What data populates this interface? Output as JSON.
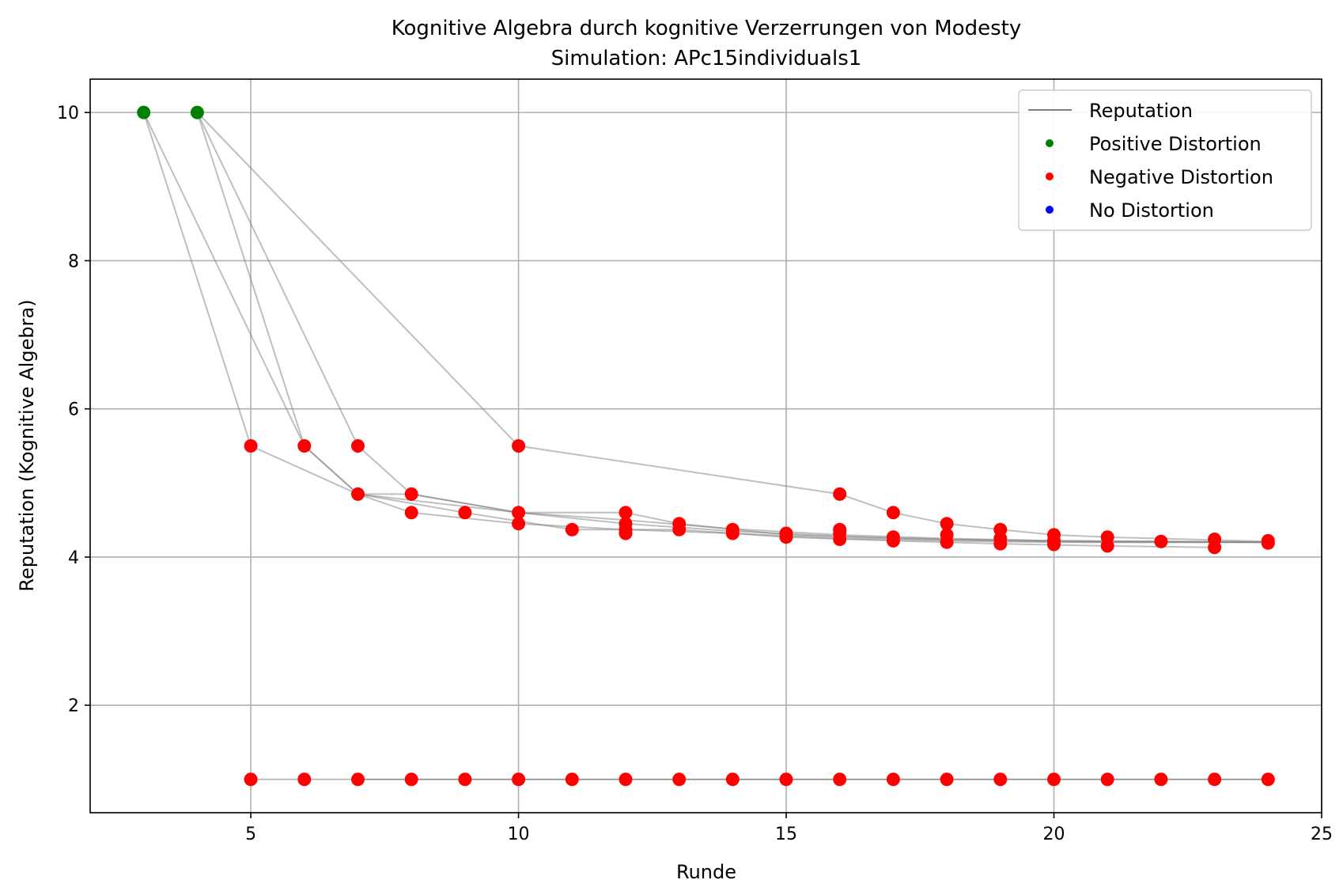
{
  "chart_data": {
    "type": "scatter",
    "title": "Kognitive Algebra durch kognitive Verzerrungen von Modesty",
    "subtitle": "Simulation: APc15individuals1",
    "xlabel": "Runde",
    "ylabel": "Reputation (Kognitive Algebra)",
    "xlim": [
      2,
      25
    ],
    "ylim": [
      0.55,
      10.45
    ],
    "xticks": [
      5,
      10,
      15,
      20,
      25
    ],
    "yticks": [
      2,
      4,
      6,
      8,
      10
    ],
    "grid": true,
    "legend": {
      "placement": "top-right",
      "entries": [
        {
          "label": "Reputation",
          "kind": "line",
          "color": "#808080"
        },
        {
          "label": "Positive Distortion",
          "kind": "dot",
          "color": "#008000"
        },
        {
          "label": "Negative Distortion",
          "kind": "dot",
          "color": "#ff0000"
        },
        {
          "label": "No Distortion",
          "kind": "dot",
          "color": "#0000ff"
        }
      ]
    },
    "line_color": "#808080",
    "trajectories": [
      [
        [
          3,
          10
        ],
        [
          5,
          5.5
        ],
        [
          7,
          4.85
        ],
        [
          10,
          4.6
        ],
        [
          12,
          4.5
        ],
        [
          14,
          4.38
        ],
        [
          16,
          4.3
        ],
        [
          18,
          4.25
        ],
        [
          20,
          4.22
        ],
        [
          22,
          4.21
        ],
        [
          24,
          4.2
        ]
      ],
      [
        [
          3,
          10
        ],
        [
          6,
          5.5
        ],
        [
          7,
          4.85
        ],
        [
          8,
          4.85
        ],
        [
          10,
          4.6
        ],
        [
          12,
          4.45
        ],
        [
          14,
          4.35
        ],
        [
          16,
          4.28
        ],
        [
          18,
          4.24
        ],
        [
          20,
          4.22
        ],
        [
          22,
          4.21
        ],
        [
          24,
          4.2
        ]
      ],
      [
        [
          4,
          10
        ],
        [
          6,
          5.5
        ],
        [
          7,
          4.85
        ],
        [
          8,
          4.6
        ],
        [
          10,
          4.45
        ],
        [
          12,
          4.37
        ],
        [
          14,
          4.32
        ],
        [
          16,
          4.25
        ],
        [
          18,
          4.22
        ],
        [
          20,
          4.2
        ],
        [
          22,
          4.2
        ],
        [
          24,
          4.2
        ]
      ],
      [
        [
          4,
          10
        ],
        [
          7,
          5.5
        ],
        [
          8,
          4.85
        ],
        [
          10,
          4.6
        ],
        [
          12,
          4.6
        ],
        [
          13,
          4.45
        ],
        [
          15,
          4.3
        ],
        [
          17,
          4.25
        ],
        [
          19,
          4.22
        ],
        [
          21,
          4.2
        ],
        [
          24,
          4.2
        ]
      ],
      [
        [
          4,
          10
        ],
        [
          10,
          5.5
        ],
        [
          16,
          4.85
        ],
        [
          17,
          4.6
        ],
        [
          18,
          4.45
        ],
        [
          19,
          4.37
        ],
        [
          20,
          4.3
        ],
        [
          21,
          4.27
        ],
        [
          23,
          4.23
        ],
        [
          24,
          4.21
        ]
      ],
      [
        [
          7,
          4.85
        ],
        [
          9,
          4.6
        ],
        [
          11,
          4.37
        ],
        [
          13,
          4.37
        ],
        [
          15,
          4.27
        ],
        [
          17,
          4.22
        ],
        [
          19,
          4.18
        ],
        [
          21,
          4.15
        ],
        [
          23,
          4.13
        ]
      ],
      [
        [
          5,
          1
        ],
        [
          6,
          1
        ],
        [
          7,
          1
        ],
        [
          8,
          1
        ],
        [
          9,
          1
        ],
        [
          10,
          1
        ],
        [
          11,
          1
        ],
        [
          12,
          1
        ],
        [
          13,
          1
        ],
        [
          14,
          1
        ],
        [
          15,
          1
        ],
        [
          16,
          1
        ],
        [
          17,
          1
        ],
        [
          18,
          1
        ],
        [
          19,
          1
        ],
        [
          20,
          1
        ],
        [
          21,
          1
        ],
        [
          22,
          1
        ],
        [
          23,
          1
        ],
        [
          24,
          1
        ]
      ],
      [
        [
          7,
          1
        ],
        [
          10,
          1
        ],
        [
          12,
          1
        ],
        [
          16,
          1
        ],
        [
          18,
          1
        ],
        [
          20,
          1
        ],
        [
          24,
          1
        ]
      ]
    ],
    "series": [
      {
        "name": "Positive Distortion",
        "color": "#008000",
        "points": [
          [
            3,
            10
          ],
          [
            4,
            10
          ]
        ]
      },
      {
        "name": "Negative Distortion",
        "color": "#ff0000",
        "points": [
          [
            5,
            5.5
          ],
          [
            6,
            5.5
          ],
          [
            7,
            5.5
          ],
          [
            10,
            5.5
          ],
          [
            7,
            4.85
          ],
          [
            8,
            4.85
          ],
          [
            16,
            4.85
          ],
          [
            8,
            4.6
          ],
          [
            9,
            4.6
          ],
          [
            10,
            4.6
          ],
          [
            12,
            4.6
          ],
          [
            17,
            4.6
          ],
          [
            10,
            4.45
          ],
          [
            12,
            4.45
          ],
          [
            13,
            4.45
          ],
          [
            18,
            4.45
          ],
          [
            11,
            4.37
          ],
          [
            12,
            4.37
          ],
          [
            13,
            4.37
          ],
          [
            14,
            4.37
          ],
          [
            16,
            4.37
          ],
          [
            19,
            4.37
          ],
          [
            12,
            4.32
          ],
          [
            14,
            4.32
          ],
          [
            15,
            4.32
          ],
          [
            16,
            4.32
          ],
          [
            20,
            4.3
          ],
          [
            21,
            4.27
          ],
          [
            17,
            4.27
          ],
          [
            18,
            4.3
          ],
          [
            19,
            4.25
          ],
          [
            15,
            4.27
          ],
          [
            16,
            4.24
          ],
          [
            17,
            4.22
          ],
          [
            18,
            4.2
          ],
          [
            19,
            4.18
          ],
          [
            20,
            4.22
          ],
          [
            20,
            4.17
          ],
          [
            21,
            4.15
          ],
          [
            22,
            4.21
          ],
          [
            23,
            4.24
          ],
          [
            23,
            4.13
          ],
          [
            24,
            4.22
          ],
          [
            24,
            4.19
          ],
          [
            5,
            1
          ],
          [
            6,
            1
          ],
          [
            7,
            1
          ],
          [
            8,
            1
          ],
          [
            9,
            1
          ],
          [
            10,
            1
          ],
          [
            11,
            1
          ],
          [
            12,
            1
          ],
          [
            13,
            1
          ],
          [
            14,
            1
          ],
          [
            15,
            1
          ],
          [
            16,
            1
          ],
          [
            17,
            1
          ],
          [
            18,
            1
          ],
          [
            19,
            1
          ],
          [
            20,
            1
          ],
          [
            21,
            1
          ],
          [
            22,
            1
          ],
          [
            23,
            1
          ],
          [
            24,
            1
          ]
        ]
      },
      {
        "name": "No Distortion",
        "color": "#0000ff",
        "points": []
      }
    ]
  }
}
